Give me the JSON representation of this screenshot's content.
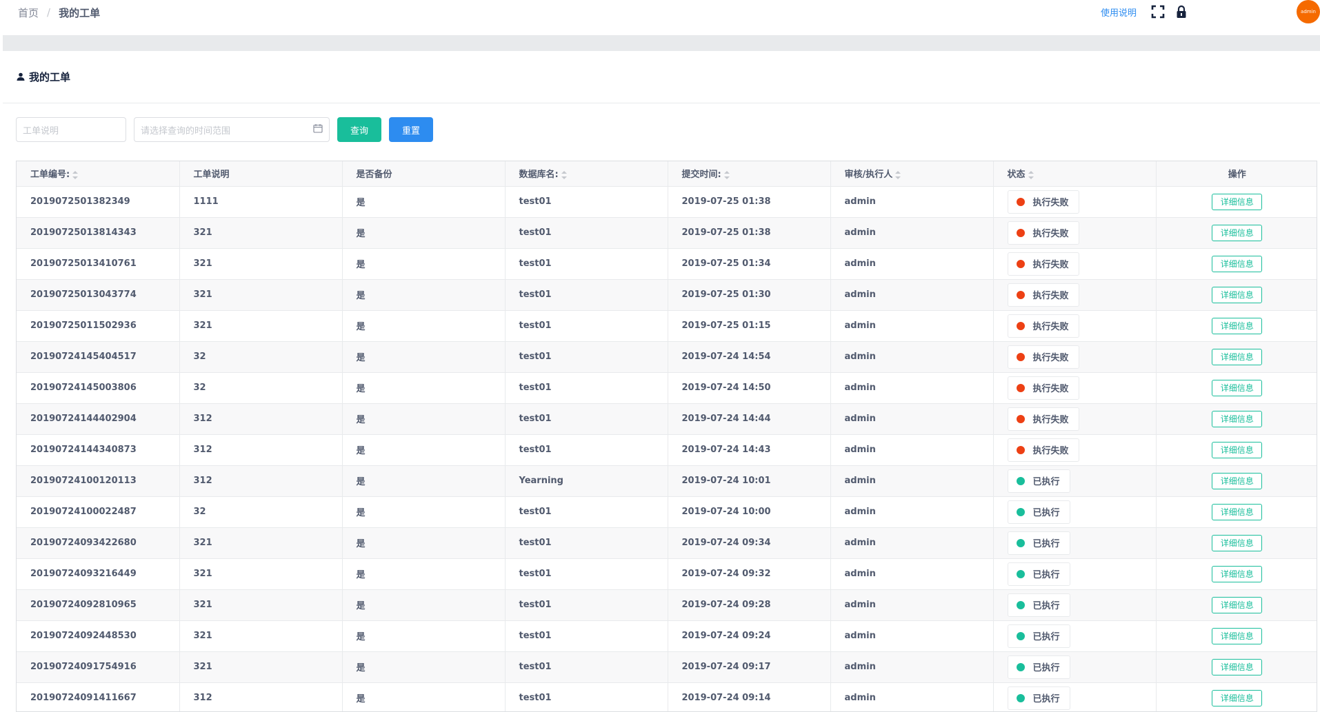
{
  "breadcrumb": {
    "home": "首页",
    "separator": "/",
    "current": "我的工单"
  },
  "header": {
    "help_label": "使用说明",
    "avatar_text": "admin"
  },
  "card": {
    "title": "我的工单"
  },
  "filters": {
    "desc_placeholder": "工单说明",
    "date_placeholder": "请选择查询的时间范围",
    "query_label": "查询",
    "reset_label": "重置"
  },
  "colors": {
    "failed": "#ed4014",
    "success": "#19be9b",
    "accent": "#2d8cf0"
  },
  "table": {
    "headers": [
      "工单编号:",
      "工单说明",
      "是否备份",
      "数据库名:",
      "提交时间:",
      "审核/执行人",
      "状态",
      "操作"
    ],
    "detail_label": "详细信息",
    "rows": [
      {
        "id": "2019072501382349",
        "desc": "1111",
        "backup": "是",
        "db": "test01",
        "time": "2019-07-25 01:38",
        "user": "admin",
        "status": "执行失败",
        "state": "failed"
      },
      {
        "id": "20190725013814343",
        "desc": "321",
        "backup": "是",
        "db": "test01",
        "time": "2019-07-25 01:38",
        "user": "admin",
        "status": "执行失败",
        "state": "failed"
      },
      {
        "id": "20190725013410761",
        "desc": "321",
        "backup": "是",
        "db": "test01",
        "time": "2019-07-25 01:34",
        "user": "admin",
        "status": "执行失败",
        "state": "failed"
      },
      {
        "id": "20190725013043774",
        "desc": "321",
        "backup": "是",
        "db": "test01",
        "time": "2019-07-25 01:30",
        "user": "admin",
        "status": "执行失败",
        "state": "failed"
      },
      {
        "id": "20190725011502936",
        "desc": "321",
        "backup": "是",
        "db": "test01",
        "time": "2019-07-25 01:15",
        "user": "admin",
        "status": "执行失败",
        "state": "failed"
      },
      {
        "id": "20190724145404517",
        "desc": "32",
        "backup": "是",
        "db": "test01",
        "time": "2019-07-24 14:54",
        "user": "admin",
        "status": "执行失败",
        "state": "failed"
      },
      {
        "id": "20190724145003806",
        "desc": "32",
        "backup": "是",
        "db": "test01",
        "time": "2019-07-24 14:50",
        "user": "admin",
        "status": "执行失败",
        "state": "failed"
      },
      {
        "id": "20190724144402904",
        "desc": "312",
        "backup": "是",
        "db": "test01",
        "time": "2019-07-24 14:44",
        "user": "admin",
        "status": "执行失败",
        "state": "failed"
      },
      {
        "id": "20190724144340873",
        "desc": "312",
        "backup": "是",
        "db": "test01",
        "time": "2019-07-24 14:43",
        "user": "admin",
        "status": "执行失败",
        "state": "failed"
      },
      {
        "id": "20190724100120113",
        "desc": "312",
        "backup": "是",
        "db": "Yearning",
        "time": "2019-07-24 10:01",
        "user": "admin",
        "status": "已执行",
        "state": "success"
      },
      {
        "id": "20190724100022487",
        "desc": "32",
        "backup": "是",
        "db": "test01",
        "time": "2019-07-24 10:00",
        "user": "admin",
        "status": "已执行",
        "state": "success"
      },
      {
        "id": "20190724093422680",
        "desc": "321",
        "backup": "是",
        "db": "test01",
        "time": "2019-07-24 09:34",
        "user": "admin",
        "status": "已执行",
        "state": "success"
      },
      {
        "id": "20190724093216449",
        "desc": "321",
        "backup": "是",
        "db": "test01",
        "time": "2019-07-24 09:32",
        "user": "admin",
        "status": "已执行",
        "state": "success"
      },
      {
        "id": "20190724092810965",
        "desc": "321",
        "backup": "是",
        "db": "test01",
        "time": "2019-07-24 09:28",
        "user": "admin",
        "status": "已执行",
        "state": "success"
      },
      {
        "id": "20190724092448530",
        "desc": "321",
        "backup": "是",
        "db": "test01",
        "time": "2019-07-24 09:24",
        "user": "admin",
        "status": "已执行",
        "state": "success"
      },
      {
        "id": "20190724091754916",
        "desc": "321",
        "backup": "是",
        "db": "test01",
        "time": "2019-07-24 09:17",
        "user": "admin",
        "status": "已执行",
        "state": "success"
      },
      {
        "id": "20190724091411667",
        "desc": "312",
        "backup": "是",
        "db": "test01",
        "time": "2019-07-24 09:14",
        "user": "admin",
        "status": "已执行",
        "state": "success"
      }
    ]
  }
}
